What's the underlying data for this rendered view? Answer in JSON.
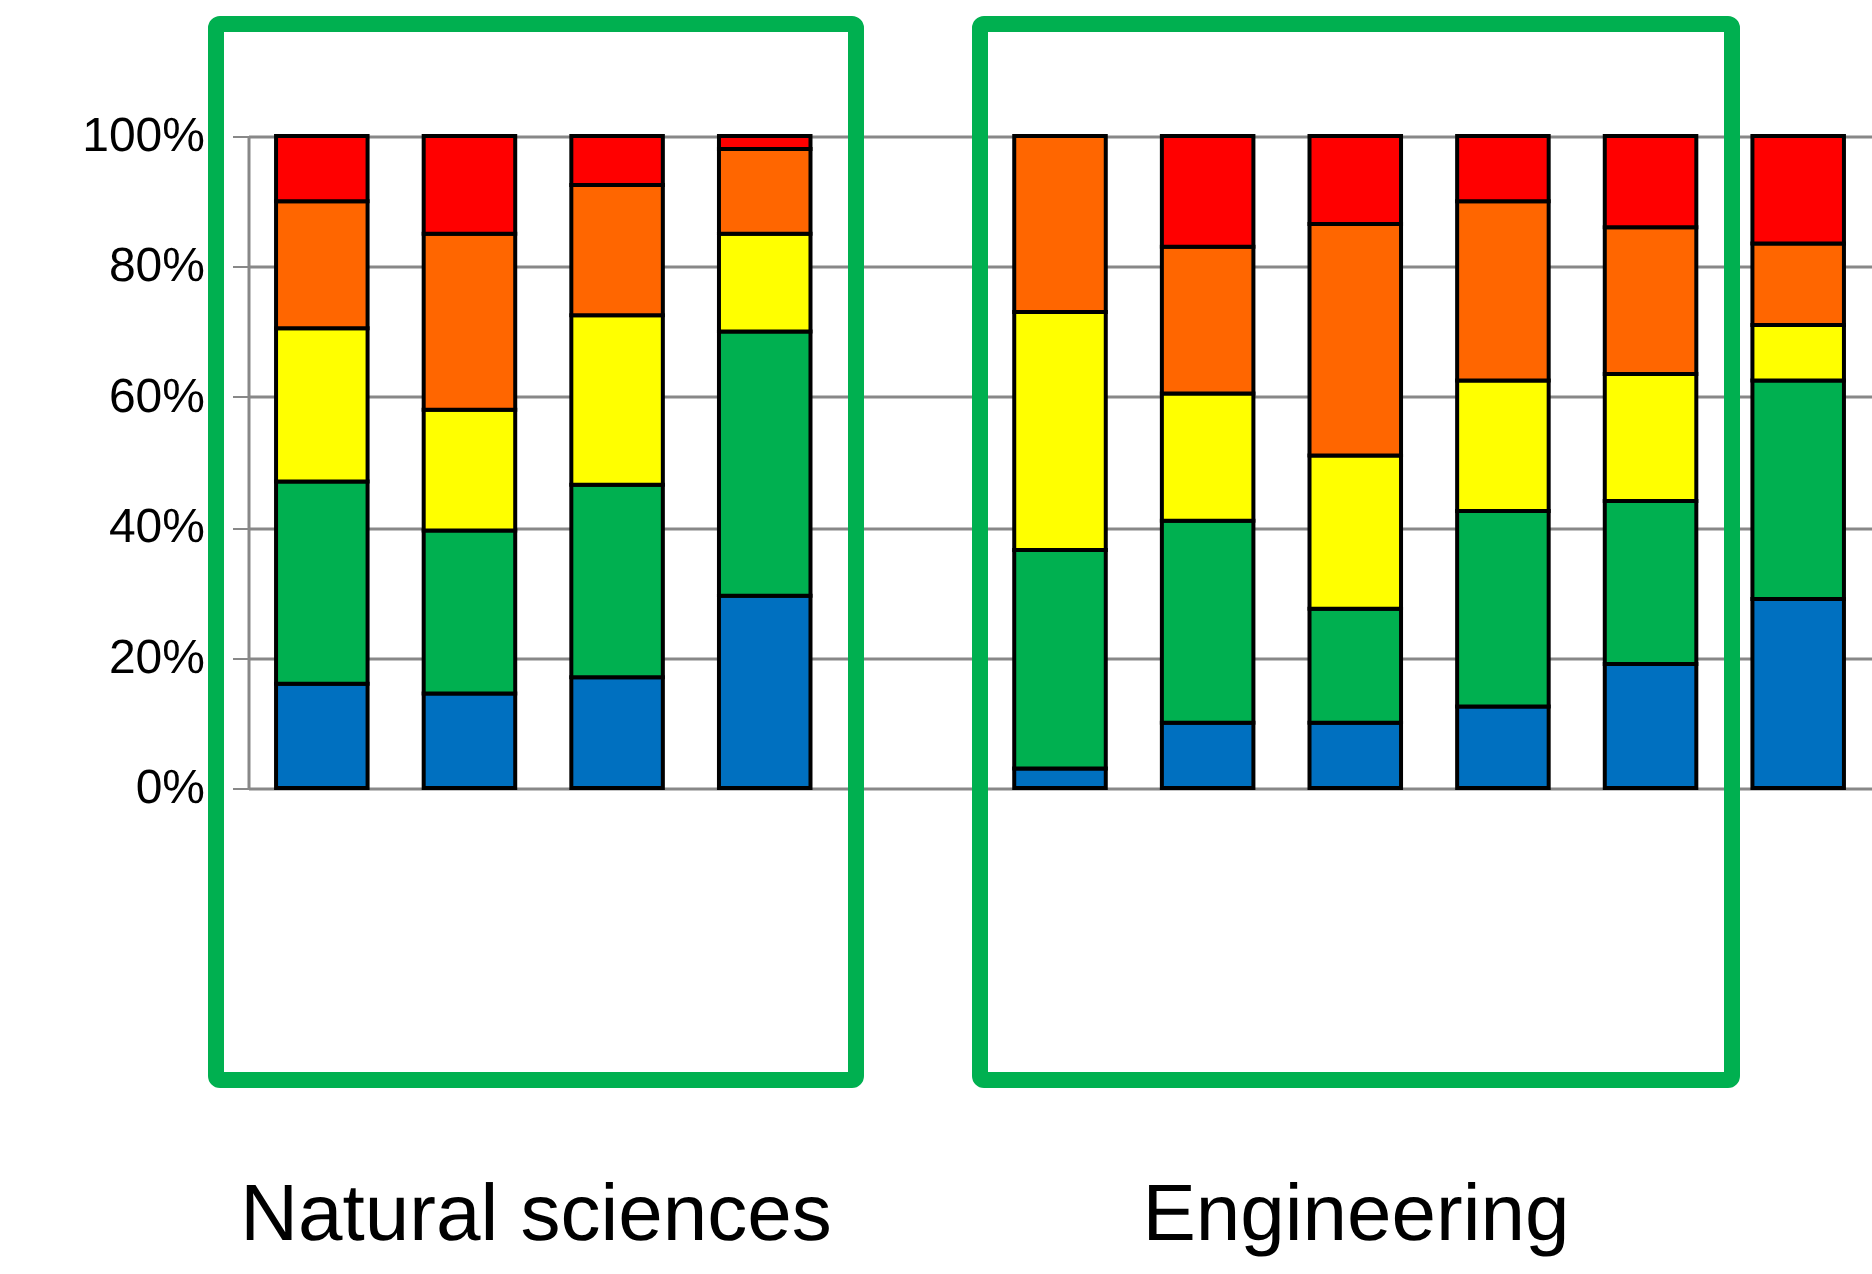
{
  "chart_data": {
    "type": "bar",
    "stacked": true,
    "categories": [
      null,
      null,
      null,
      null,
      null,
      null,
      null,
      null,
      null,
      null,
      null
    ],
    "series": [
      {
        "color": "#0070c0",
        "values": [
          16,
          14.5,
          17,
          29.5,
          null,
          3,
          10,
          10,
          12.5,
          19,
          29
        ]
      },
      {
        "color": "#00b050",
        "values": [
          31,
          25,
          29.5,
          40.5,
          null,
          33.5,
          31,
          17.5,
          30,
          25,
          33.5
        ]
      },
      {
        "color": "#ffff00",
        "values": [
          23.5,
          18.5,
          26,
          15,
          null,
          36.5,
          19.5,
          23.5,
          20,
          19.5,
          8.5
        ]
      },
      {
        "color": "#ff6600",
        "values": [
          19.5,
          27,
          20,
          13,
          null,
          27,
          22.5,
          35.5,
          27.5,
          22.5,
          12.5
        ]
      },
      {
        "color": "#ff0000",
        "values": [
          10,
          15,
          7.5,
          2,
          null,
          null,
          17,
          13.5,
          10,
          14,
          16.5
        ]
      }
    ],
    "ylim": [
      0,
      100
    ],
    "yticks": [
      {
        "value": 0,
        "label": "0%"
      },
      {
        "value": 20,
        "label": "20%"
      },
      {
        "value": 40,
        "label": "40%"
      },
      {
        "value": 60,
        "label": "60%"
      },
      {
        "value": 80,
        "label": "80%"
      },
      {
        "value": 100,
        "label": "100%"
      }
    ],
    "grid": "y",
    "tick_labels": "y",
    "annotations": [
      "Natural sciences",
      "Engineering"
    ]
  }
}
